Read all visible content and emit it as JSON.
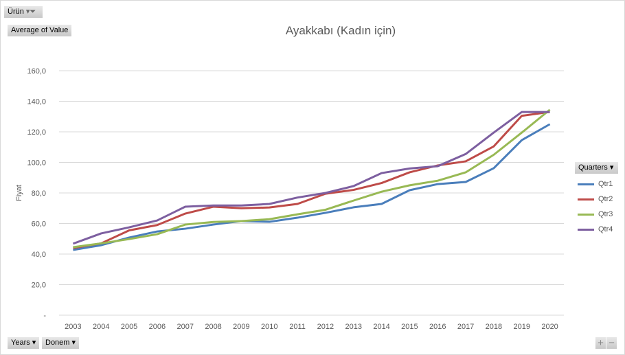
{
  "filters": {
    "product": "Ürün",
    "value_field": "Average of Value",
    "years": "Years",
    "period": "Donem",
    "legend_field": "Quarters"
  },
  "zoom": {
    "plus": "+",
    "minus": "−"
  },
  "chart_data": {
    "type": "line",
    "title": "Ayakkabı (Kadın için)",
    "xlabel": "",
    "ylabel": "Fiyat",
    "ylim": [
      0,
      160
    ],
    "yticks": [
      "-",
      "20,0",
      "40,0",
      "60,0",
      "80,0",
      "100,0",
      "120,0",
      "140,0",
      "160,0"
    ],
    "grid": true,
    "legend_position": "right",
    "categories": [
      "2003",
      "2004",
      "2005",
      "2006",
      "2007",
      "2008",
      "2009",
      "2010",
      "2011",
      "2012",
      "2013",
      "2014",
      "2015",
      "2016",
      "2017",
      "2018",
      "2019",
      "2020"
    ],
    "series": [
      {
        "name": "Qtr1",
        "color": "#4a7ebb",
        "values": [
          42.7,
          45.8,
          50.8,
          54.8,
          56.6,
          59.3,
          61.6,
          61.1,
          63.8,
          67,
          70.6,
          72.8,
          81.8,
          85.8,
          87.2,
          96.2,
          114.6,
          125
        ]
      },
      {
        "name": "Qtr2",
        "color": "#be4b48",
        "values": [
          44,
          47,
          55.5,
          59,
          66.5,
          71,
          70,
          70.5,
          72.8,
          79.5,
          82,
          86.5,
          93.5,
          98,
          100.7,
          110.5,
          130.5,
          133
        ]
      },
      {
        "name": "Qtr3",
        "color": "#98b954",
        "values": [
          44.5,
          47,
          49.8,
          53,
          59.3,
          61,
          61.6,
          62.8,
          66,
          69,
          75,
          80.8,
          85,
          88,
          93.5,
          105,
          119.5,
          134.5
        ]
      },
      {
        "name": "Qtr4",
        "color": "#7d5fa0",
        "values": [
          46.8,
          53.5,
          57.5,
          62,
          71,
          71.8,
          71.8,
          72.8,
          77,
          80,
          84.5,
          93,
          96,
          97.5,
          105.5,
          119.5,
          133,
          133
        ]
      }
    ]
  }
}
